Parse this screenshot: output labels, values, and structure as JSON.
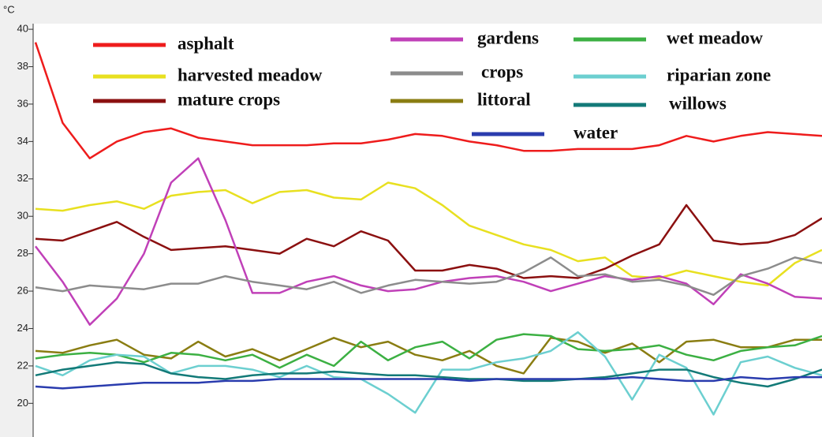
{
  "chart_data": {
    "type": "line",
    "y_unit": "°C",
    "categories": [
      null,
      null,
      null,
      null,
      null,
      null,
      null,
      null,
      null,
      null,
      null,
      null,
      null,
      null,
      null,
      null,
      null,
      null,
      null,
      null,
      null,
      null,
      null,
      null,
      null,
      null,
      null,
      null,
      null,
      null
    ],
    "ylim": [
      18.2,
      40.3
    ],
    "yticks": [
      20,
      22,
      24,
      26,
      28,
      30,
      32,
      34,
      36,
      38,
      40
    ],
    "series": [
      {
        "name": "asphalt",
        "color": "#ee1c1c",
        "values": [
          39.3,
          35,
          33.1,
          34,
          34.5,
          34.7,
          34.2,
          34,
          33.8,
          33.8,
          33.8,
          33.9,
          33.9,
          34.1,
          34.4,
          34.3,
          34,
          33.8,
          33.5,
          33.5,
          33.6,
          33.6,
          33.6,
          33.8,
          34.3,
          34,
          34.3,
          34.5,
          34.4,
          34.3
        ]
      },
      {
        "name": "harvested meadow",
        "color": "#e8e020",
        "values": [
          30.4,
          30.3,
          30.6,
          30.8,
          30.4,
          31.1,
          31.3,
          31.4,
          30.7,
          31.3,
          31.4,
          31.0,
          30.9,
          31.8,
          31.5,
          30.6,
          29.5,
          29.0,
          28.5,
          28.2,
          27.6,
          27.8,
          26.8,
          26.7,
          27.1,
          26.8,
          26.5,
          26.3,
          27.5,
          28.2
        ]
      },
      {
        "name": "mature crops",
        "color": "#8b1010",
        "values": [
          28.8,
          28.7,
          29.2,
          29.7,
          28.9,
          28.2,
          28.3,
          28.4,
          28.2,
          28.0,
          28.8,
          28.4,
          29.2,
          28.7,
          27.1,
          27.1,
          27.4,
          27.2,
          26.7,
          26.8,
          26.7,
          27.2,
          27.9,
          28.5,
          30.6,
          28.7,
          28.5,
          28.6,
          29.0,
          29.9
        ]
      },
      {
        "name": "gardens",
        "color": "#c040b8",
        "values": [
          28.4,
          26.5,
          24.2,
          25.6,
          28.0,
          31.8,
          33.1,
          29.8,
          25.9,
          25.9,
          26.5,
          26.8,
          26.3,
          26.0,
          26.1,
          26.5,
          26.7,
          26.8,
          26.5,
          26.0,
          26.4,
          26.8,
          26.6,
          26.8,
          26.4,
          25.3,
          26.9,
          26.4,
          25.7,
          25.6
        ]
      },
      {
        "name": "crops",
        "color": "#8c8c8c",
        "values": [
          26.2,
          26.0,
          26.3,
          26.2,
          26.1,
          26.4,
          26.4,
          26.8,
          26.5,
          26.3,
          26.1,
          26.5,
          25.9,
          26.3,
          26.6,
          26.5,
          26.4,
          26.5,
          27.0,
          27.8,
          26.8,
          26.9,
          26.5,
          26.6,
          26.3,
          25.8,
          26.8,
          27.2,
          27.8,
          27.5
        ]
      },
      {
        "name": "littoral",
        "color": "#8a7d12",
        "values": [
          22.8,
          22.7,
          23.1,
          23.4,
          22.6,
          22.4,
          23.3,
          22.5,
          22.9,
          22.3,
          22.9,
          23.5,
          23.0,
          23.3,
          22.6,
          22.3,
          22.8,
          22.0,
          21.6,
          23.5,
          23.3,
          22.7,
          23.2,
          22.2,
          23.3,
          23.4,
          23.0,
          23.0,
          23.4,
          23.4
        ]
      },
      {
        "name": "wet meadow",
        "color": "#3cb043",
        "values": [
          22.4,
          22.6,
          22.7,
          22.6,
          22.2,
          22.7,
          22.6,
          22.3,
          22.6,
          21.9,
          22.6,
          22.0,
          23.3,
          22.3,
          23.0,
          23.3,
          22.4,
          23.4,
          23.7,
          23.6,
          22.9,
          22.8,
          22.9,
          23.1,
          22.6,
          22.3,
          22.8,
          23.0,
          23.1,
          23.6
        ]
      },
      {
        "name": "riparian zone",
        "color": "#6ccfd0",
        "values": [
          22.0,
          21.5,
          22.3,
          22.6,
          22.5,
          21.6,
          22.0,
          22.0,
          21.8,
          21.4,
          22.0,
          21.4,
          21.3,
          20.5,
          19.5,
          21.8,
          21.8,
          22.2,
          22.4,
          22.8,
          23.8,
          22.5,
          20.2,
          22.6,
          21.9,
          19.4,
          22.2,
          22.5,
          21.9,
          21.5
        ]
      },
      {
        "name": "willows",
        "color": "#137a78",
        "values": [
          21.5,
          21.8,
          22.0,
          22.2,
          22.1,
          21.6,
          21.4,
          21.3,
          21.5,
          21.6,
          21.6,
          21.7,
          21.6,
          21.5,
          21.5,
          21.4,
          21.3,
          21.3,
          21.2,
          21.2,
          21.3,
          21.4,
          21.6,
          21.8,
          21.8,
          21.4,
          21.1,
          20.9,
          21.3,
          21.8
        ]
      },
      {
        "name": "water",
        "color": "#2a3cae",
        "values": [
          20.9,
          20.8,
          20.9,
          21.0,
          21.1,
          21.1,
          21.1,
          21.2,
          21.2,
          21.3,
          21.3,
          21.3,
          21.3,
          21.3,
          21.3,
          21.3,
          21.2,
          21.3,
          21.3,
          21.3,
          21.3,
          21.3,
          21.4,
          21.3,
          21.2,
          21.2,
          21.4,
          21.3,
          21.4,
          21.4
        ]
      }
    ]
  }
}
